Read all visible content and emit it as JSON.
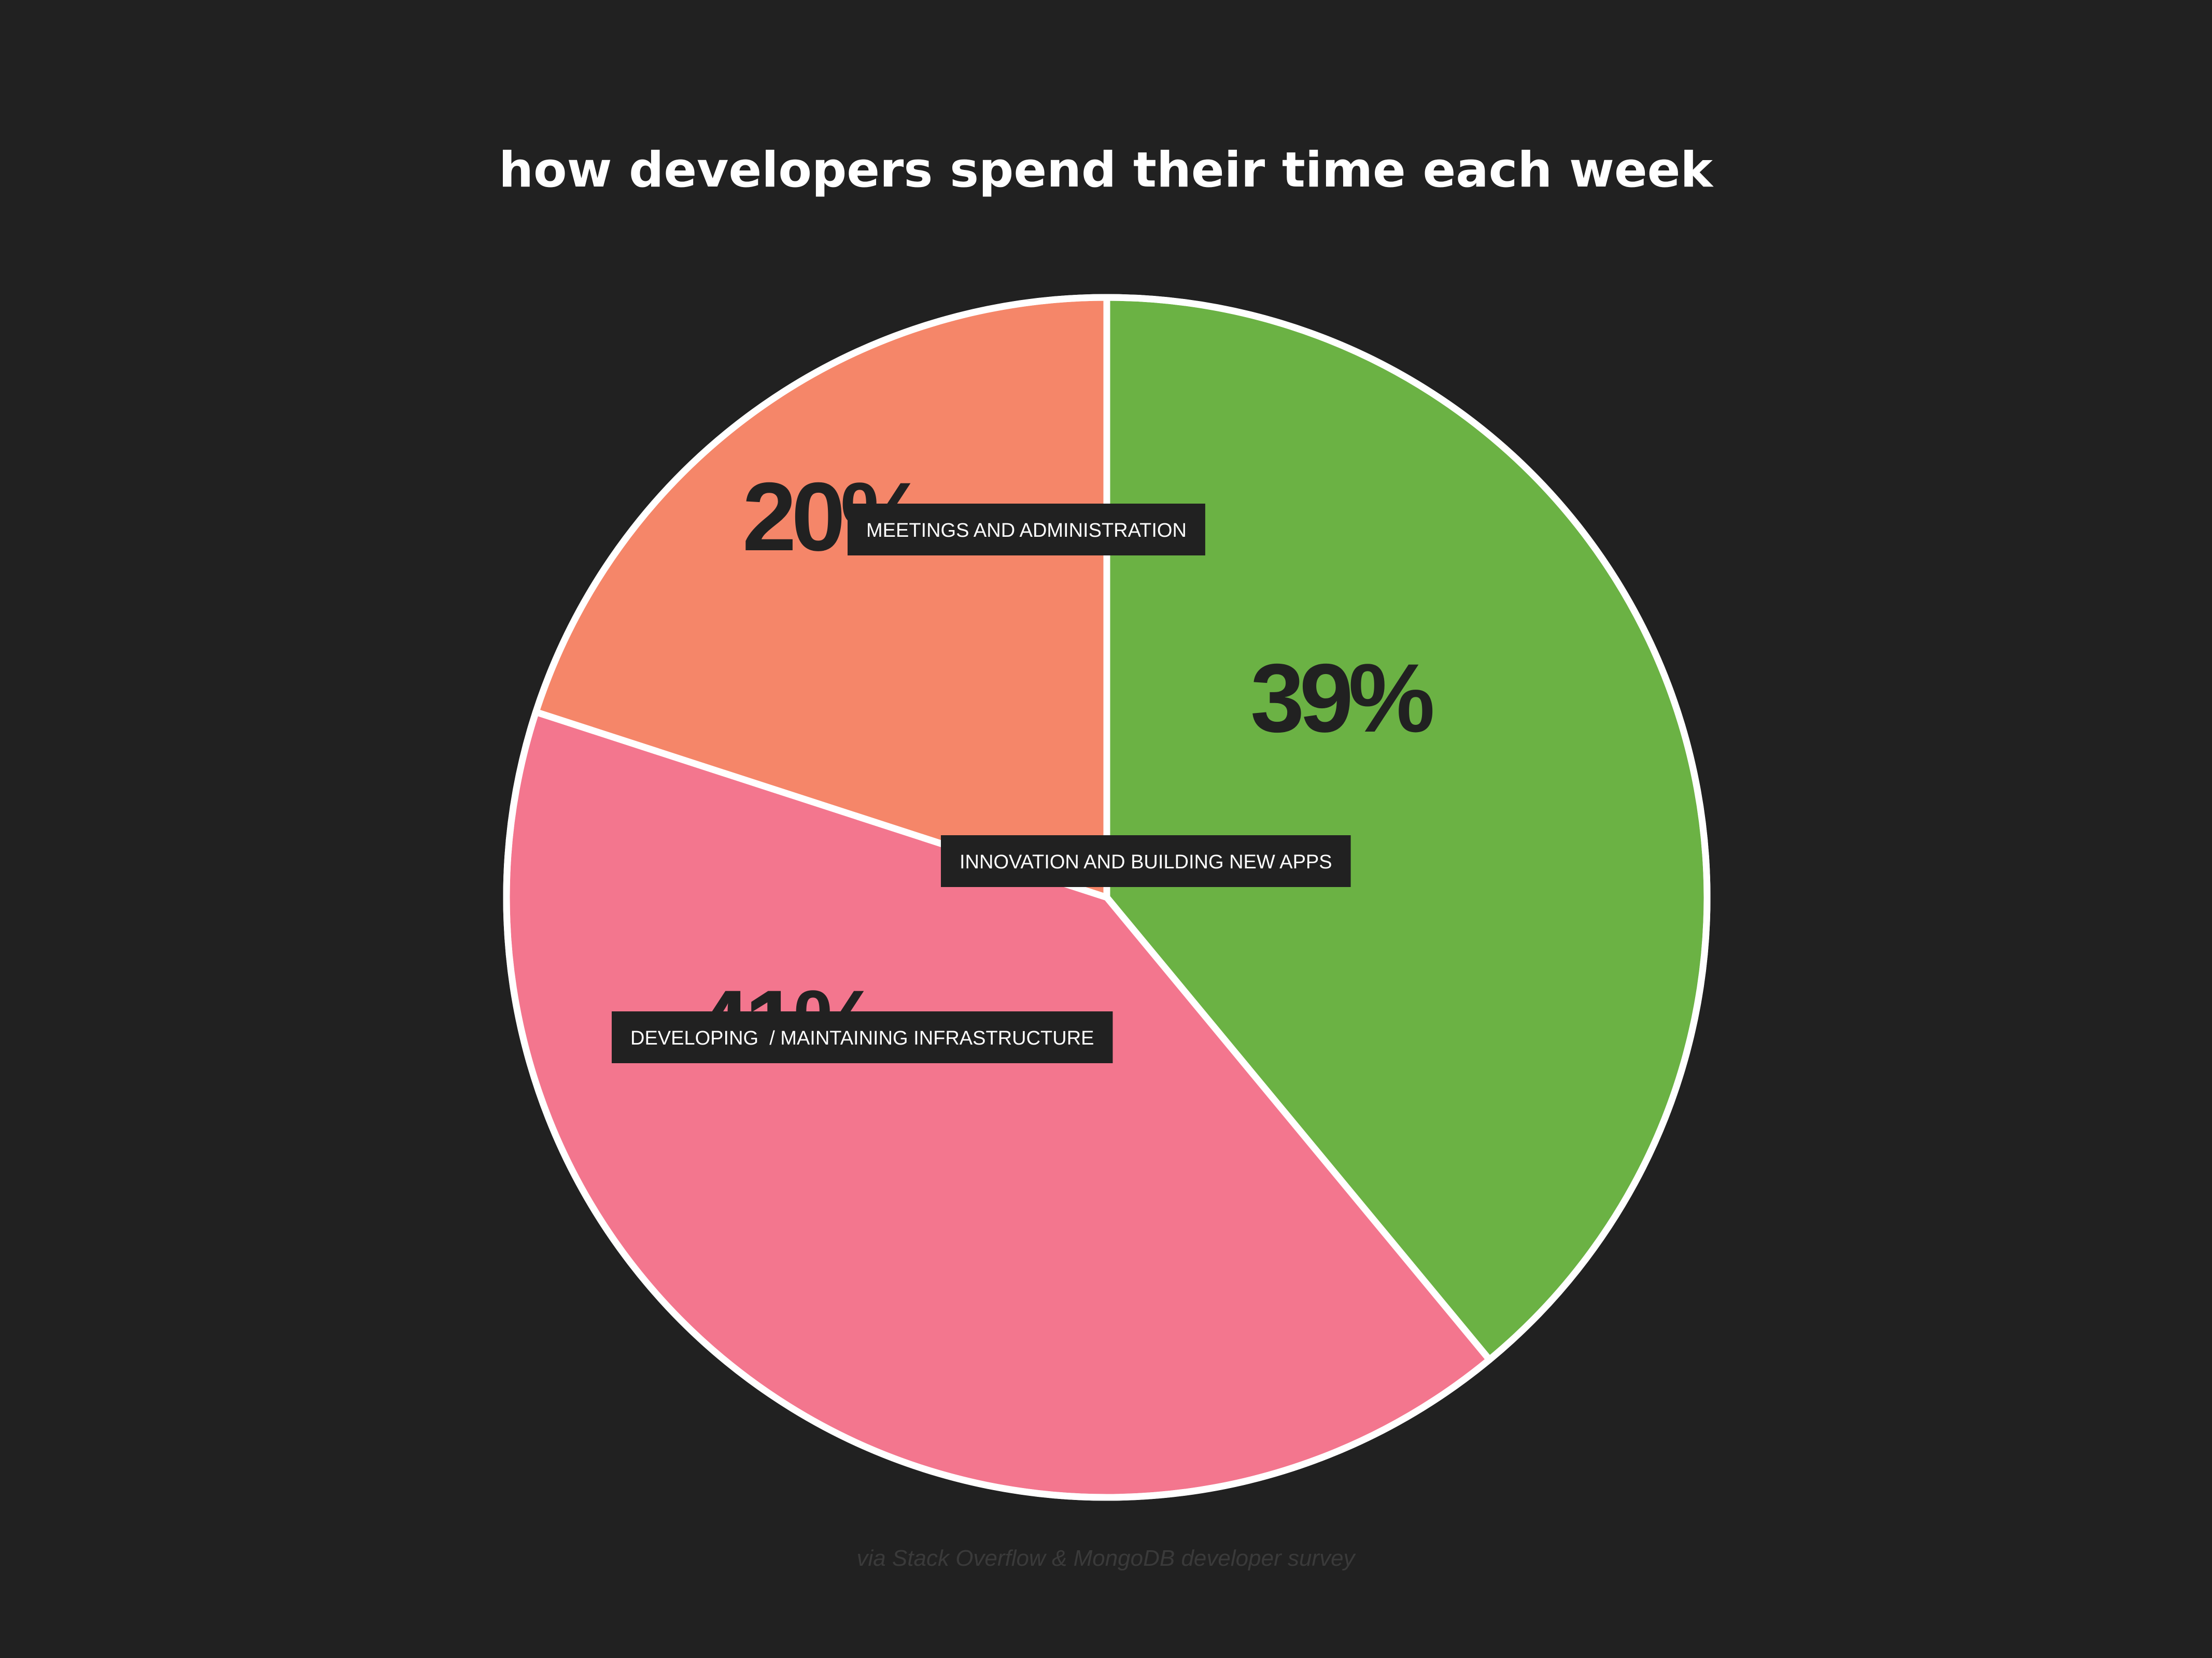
{
  "chart_data": {
    "type": "pie",
    "title": "how developers spend their time each week",
    "source": "via Stack Overflow & MongoDB developer survey",
    "categories": [
      "INNOVATION AND BUILDING NEW APPS",
      "DEVELOPING  / MAINTAINING INFRASTRUCTURE",
      "MEETINGS AND ADMINISTRATION"
    ],
    "values": [
      39,
      41,
      20
    ],
    "labels": [
      "39%",
      "41%",
      "20%"
    ],
    "colors": [
      "#6bb244",
      "#f3768e",
      "#f58669"
    ],
    "start_angle": "12 o'clock",
    "direction": "clockwise",
    "legend": "none"
  },
  "background_color": "#212121"
}
